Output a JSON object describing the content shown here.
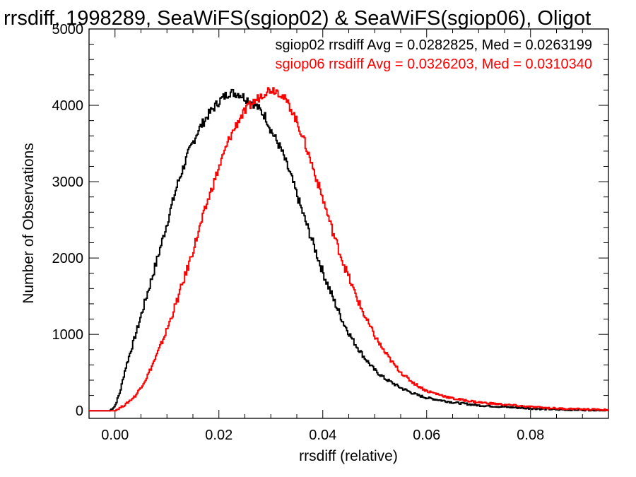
{
  "chart_data": {
    "type": "line",
    "title": "rrsdiff, 1998289, SeaWiFS(sgiop02) & SeaWiFS(sgiop06), Oligot",
    "xlabel": "rrsdiff (relative)",
    "ylabel": "Number of Observations",
    "xlim": [
      -0.005,
      0.095
    ],
    "ylim": [
      -100,
      5000
    ],
    "x_ticks": [
      0.0,
      0.02,
      0.04,
      0.06,
      0.08
    ],
    "x_tick_labels": [
      "0.00",
      "0.02",
      "0.04",
      "0.06",
      "0.08"
    ],
    "y_ticks": [
      0,
      1000,
      2000,
      3000,
      4000,
      5000
    ],
    "y_tick_labels": [
      "0",
      "1000",
      "2000",
      "3000",
      "4000",
      "5000"
    ],
    "grid": false,
    "step_style": "histogram",
    "series": [
      {
        "label": "sgiop02 rrsdiff Avg = 0.0282825, Med = 0.0263199",
        "color": "#000000",
        "x": [
          -0.004,
          -0.001,
          0.0,
          0.001,
          0.002,
          0.004,
          0.006,
          0.008,
          0.01,
          0.012,
          0.014,
          0.016,
          0.018,
          0.02,
          0.021,
          0.022,
          0.023,
          0.024,
          0.025,
          0.026,
          0.027,
          0.028,
          0.029,
          0.03,
          0.032,
          0.034,
          0.036,
          0.038,
          0.04,
          0.042,
          0.044,
          0.046,
          0.048,
          0.05,
          0.052,
          0.055,
          0.058,
          0.06,
          0.065,
          0.07,
          0.075,
          0.08,
          0.085,
          0.09,
          0.095
        ],
        "values": [
          0,
          0,
          60,
          250,
          550,
          1000,
          1480,
          1950,
          2450,
          2960,
          3350,
          3670,
          3880,
          4050,
          4110,
          4170,
          4160,
          4150,
          4100,
          4060,
          4010,
          3930,
          3850,
          3680,
          3420,
          3050,
          2620,
          2220,
          1820,
          1470,
          1150,
          900,
          700,
          530,
          420,
          300,
          210,
          170,
          110,
          70,
          50,
          30,
          15,
          10,
          5
        ]
      },
      {
        "label": "sgiop06 rrsdiff Avg = 0.0326203, Med = 0.0310340",
        "color": "#ff0000",
        "x": [
          -0.004,
          0.0,
          0.002,
          0.004,
          0.006,
          0.008,
          0.01,
          0.012,
          0.014,
          0.016,
          0.018,
          0.02,
          0.022,
          0.024,
          0.026,
          0.028,
          0.029,
          0.03,
          0.031,
          0.032,
          0.033,
          0.034,
          0.036,
          0.038,
          0.04,
          0.042,
          0.044,
          0.046,
          0.048,
          0.05,
          0.052,
          0.054,
          0.056,
          0.058,
          0.06,
          0.065,
          0.07,
          0.075,
          0.08,
          0.085,
          0.09,
          0.095
        ],
        "values": [
          0,
          0,
          80,
          200,
          420,
          720,
          1060,
          1450,
          1870,
          2320,
          2780,
          3180,
          3560,
          3830,
          4000,
          4120,
          4180,
          4210,
          4200,
          4150,
          4050,
          3950,
          3620,
          3210,
          2780,
          2330,
          1930,
          1570,
          1250,
          980,
          760,
          580,
          440,
          340,
          260,
          160,
          110,
          80,
          50,
          30,
          20,
          10
        ]
      }
    ]
  }
}
